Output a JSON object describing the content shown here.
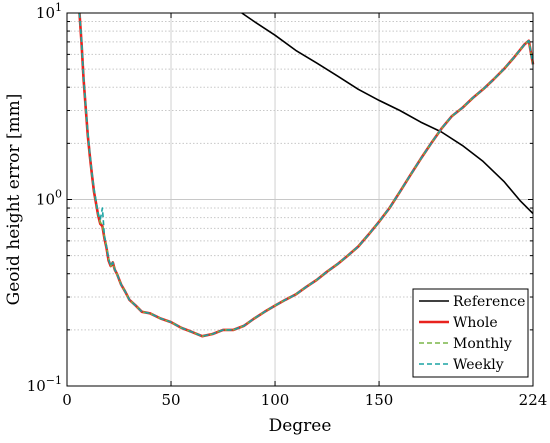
{
  "chart_data": {
    "type": "line",
    "title": "",
    "xlabel": "Degree",
    "ylabel": "Geoid height error [mm]",
    "xlim": [
      0,
      224
    ],
    "ylim": [
      0.1,
      10
    ],
    "yscale": "log",
    "grid": true,
    "legend_position": "bottom-right",
    "x_ticks": [
      {
        "value": 0,
        "label": "0"
      },
      {
        "value": 50,
        "label": "50"
      },
      {
        "value": 100,
        "label": "100"
      },
      {
        "value": 150,
        "label": "150"
      },
      {
        "value": 224,
        "label": "224"
      }
    ],
    "y_ticks": [
      {
        "value": 0.1,
        "base": "10",
        "exp": "−1"
      },
      {
        "value": 1,
        "base": "10",
        "exp": "0"
      },
      {
        "value": 10,
        "base": "10",
        "exp": "1"
      }
    ],
    "series": [
      {
        "name": "Reference",
        "color": "#000000",
        "dash": "solid",
        "x": [
          84,
          90,
          100,
          110,
          120,
          130,
          140,
          150,
          160,
          170,
          180,
          190,
          200,
          210,
          218,
          224
        ],
        "y": [
          10.0,
          9.0,
          7.6,
          6.3,
          5.4,
          4.6,
          3.9,
          3.4,
          3.0,
          2.6,
          2.3,
          1.95,
          1.6,
          1.25,
          0.98,
          0.84
        ]
      },
      {
        "name": "Whole",
        "color": "#e8221e",
        "dash": "solid",
        "x": [
          6,
          7,
          8,
          9,
          10,
          11,
          12,
          13,
          14,
          15,
          16,
          17,
          18,
          19,
          20,
          21,
          22,
          23,
          24,
          26,
          28,
          30,
          33,
          36,
          40,
          45,
          50,
          55,
          60,
          65,
          70,
          75,
          80,
          85,
          90,
          95,
          100,
          105,
          110,
          115,
          120,
          125,
          130,
          135,
          140,
          145,
          150,
          155,
          160,
          165,
          170,
          175,
          180,
          185,
          190,
          195,
          200,
          205,
          210,
          215,
          220,
          222,
          224
        ],
        "y": [
          10.0,
          6.8,
          4.4,
          3.1,
          2.2,
          1.7,
          1.35,
          1.1,
          0.95,
          0.82,
          0.74,
          0.72,
          0.62,
          0.55,
          0.47,
          0.44,
          0.46,
          0.42,
          0.4,
          0.35,
          0.32,
          0.29,
          0.27,
          0.25,
          0.245,
          0.23,
          0.22,
          0.205,
          0.195,
          0.185,
          0.19,
          0.2,
          0.2,
          0.21,
          0.23,
          0.25,
          0.27,
          0.29,
          0.31,
          0.34,
          0.37,
          0.41,
          0.45,
          0.5,
          0.56,
          0.65,
          0.76,
          0.9,
          1.1,
          1.35,
          1.65,
          2.0,
          2.4,
          2.8,
          3.1,
          3.5,
          3.9,
          4.4,
          5.0,
          5.8,
          6.8,
          7.1,
          5.3
        ]
      },
      {
        "name": "Monthly",
        "color": "#7ab648",
        "dash": "dashed",
        "x": [
          6,
          7,
          8,
          9,
          10,
          11,
          12,
          13,
          14,
          15,
          16,
          17,
          18,
          19,
          20,
          21,
          22,
          23,
          24,
          26,
          28,
          30,
          33,
          36,
          40,
          45,
          50,
          55,
          60,
          65,
          70,
          75,
          80,
          85,
          90,
          95,
          100,
          105,
          110,
          115,
          120,
          125,
          130,
          135,
          140,
          145,
          150,
          155,
          160,
          165,
          170,
          175,
          180,
          185,
          190,
          195,
          200,
          205,
          210,
          215,
          220,
          222,
          224
        ],
        "y": [
          10.0,
          6.9,
          4.5,
          3.1,
          2.25,
          1.72,
          1.36,
          1.12,
          0.96,
          0.83,
          0.75,
          0.74,
          0.63,
          0.56,
          0.48,
          0.44,
          0.46,
          0.42,
          0.4,
          0.35,
          0.32,
          0.29,
          0.27,
          0.25,
          0.245,
          0.23,
          0.22,
          0.205,
          0.195,
          0.185,
          0.19,
          0.2,
          0.2,
          0.21,
          0.23,
          0.25,
          0.27,
          0.29,
          0.31,
          0.34,
          0.37,
          0.41,
          0.45,
          0.5,
          0.56,
          0.65,
          0.76,
          0.9,
          1.1,
          1.35,
          1.65,
          2.0,
          2.4,
          2.8,
          3.1,
          3.5,
          3.9,
          4.4,
          5.0,
          5.8,
          6.8,
          7.1,
          5.3
        ]
      },
      {
        "name": "Weekly",
        "color": "#1aa3a3",
        "dash": "dashed",
        "x": [
          6,
          7,
          8,
          9,
          10,
          11,
          12,
          13,
          14,
          15,
          16,
          17,
          18,
          19,
          20,
          21,
          22,
          23,
          24,
          26,
          28,
          30,
          33,
          36,
          40,
          45,
          50,
          55,
          60,
          65,
          70,
          75,
          80,
          85,
          90,
          95,
          100,
          105,
          110,
          115,
          120,
          125,
          130,
          135,
          140,
          145,
          150,
          155,
          160,
          165,
          170,
          175,
          180,
          185,
          190,
          195,
          200,
          205,
          210,
          215,
          220,
          222,
          224
        ],
        "y": [
          10.0,
          7.0,
          4.5,
          3.2,
          2.3,
          1.75,
          1.38,
          1.14,
          0.98,
          0.84,
          0.78,
          0.9,
          0.64,
          0.56,
          0.48,
          0.44,
          0.46,
          0.42,
          0.4,
          0.35,
          0.32,
          0.29,
          0.27,
          0.25,
          0.245,
          0.23,
          0.22,
          0.205,
          0.195,
          0.185,
          0.19,
          0.2,
          0.2,
          0.21,
          0.23,
          0.25,
          0.27,
          0.29,
          0.31,
          0.34,
          0.37,
          0.41,
          0.45,
          0.5,
          0.56,
          0.65,
          0.76,
          0.9,
          1.1,
          1.35,
          1.65,
          2.0,
          2.4,
          2.8,
          3.1,
          3.5,
          3.9,
          4.4,
          5.0,
          5.8,
          6.8,
          7.1,
          5.3
        ]
      }
    ]
  }
}
